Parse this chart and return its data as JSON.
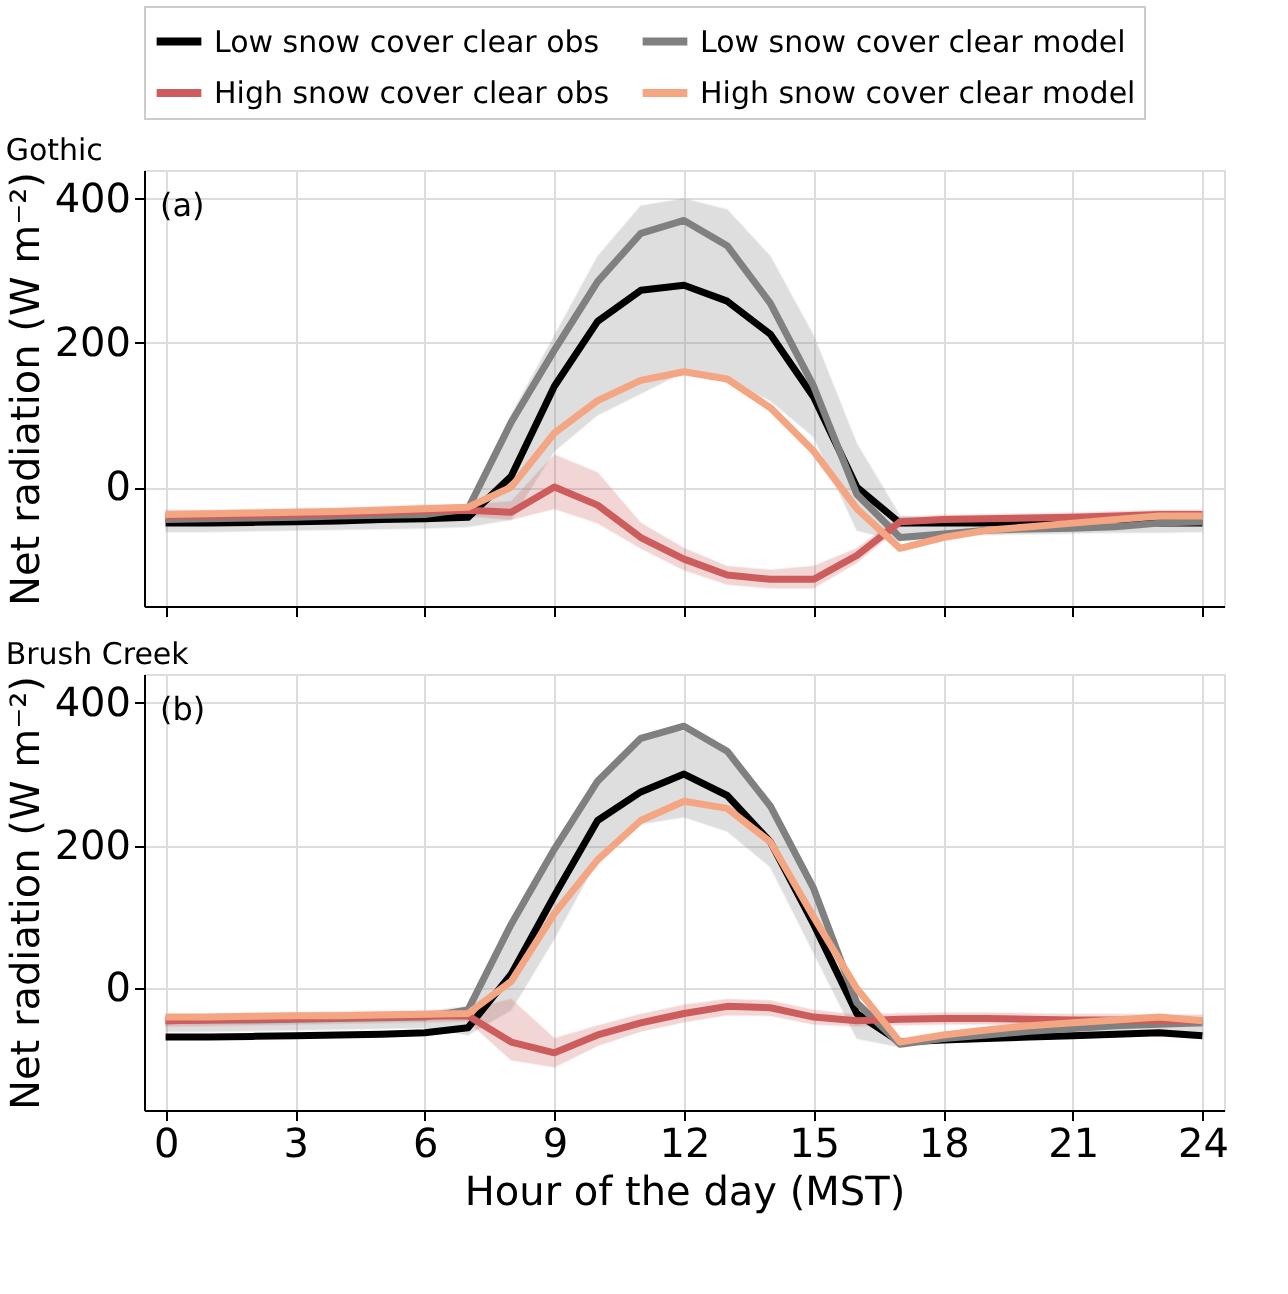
{
  "chart_data": [
    {
      "type": "line",
      "title": "Gothic",
      "ylabel": "Net radiation (W m⁻²)",
      "annotations": [
        "(a)"
      ],
      "xlim": [
        -0.5,
        24.5
      ],
      "xticks": [
        0,
        3,
        6,
        9,
        12,
        15,
        18,
        21,
        24
      ],
      "ylim": [
        -165,
        440
      ],
      "yticks": [
        0,
        200,
        400
      ],
      "grid": true,
      "legend": "top",
      "tick_labels": "y",
      "line_style": "solid",
      "marker": "none",
      "x": [
        0,
        1,
        2,
        3,
        4,
        5,
        6,
        7,
        8,
        9,
        10,
        11,
        12,
        13,
        14,
        15,
        16,
        17,
        18,
        19,
        20,
        21,
        22,
        23,
        24
      ],
      "series": [
        {
          "name": "Low snow cover clear obs",
          "color": "#000000",
          "values": [
            -50,
            -50,
            -49,
            -48,
            -47,
            -45,
            -44,
            -42,
            15,
            140,
            230,
            273,
            280,
            258,
            212,
            125,
            0,
            -50,
            -50,
            -50,
            -50,
            -47,
            -45,
            -50,
            -50
          ]
        },
        {
          "name": "Low snow cover clear model",
          "color": "#808080",
          "values": [
            -45,
            -44,
            -43,
            -42,
            -40,
            -39,
            -38,
            -30,
            90,
            190,
            285,
            352,
            370,
            335,
            255,
            140,
            -10,
            -70,
            -65,
            -60,
            -58,
            -57,
            -55,
            -50,
            -48
          ],
          "lower": [
            -62,
            -62,
            -61,
            -60,
            -59,
            -58,
            -57,
            -55,
            -45,
            50,
            100,
            130,
            160,
            150,
            120,
            70,
            -60,
            -75,
            -68,
            -66,
            -65,
            -64,
            -63,
            -63,
            -62
          ],
          "upper": [
            -38,
            -38,
            -37,
            -36,
            -35,
            -34,
            -33,
            -25,
            100,
            210,
            320,
            390,
            400,
            385,
            320,
            210,
            60,
            -40,
            -45,
            -44,
            -43,
            -42,
            -40,
            -38,
            -38
          ]
        },
        {
          "name": "High snow cover clear obs",
          "color": "#cd5c5c",
          "values": [
            -40,
            -40,
            -39,
            -38,
            -37,
            -35,
            -33,
            -32,
            -35,
            0,
            -25,
            -70,
            -100,
            -122,
            -128,
            -128,
            -95,
            -48,
            -45,
            -44,
            -43,
            -42,
            -40,
            -38,
            -38
          ],
          "lower": [
            -48,
            -48,
            -47,
            -46,
            -45,
            -43,
            -41,
            -40,
            -45,
            -30,
            -50,
            -85,
            -115,
            -135,
            -140,
            -140,
            -105,
            -55,
            -51,
            -50,
            -49,
            -48,
            -46,
            -44,
            -44
          ],
          "upper": [
            -32,
            -32,
            -31,
            -30,
            -29,
            -27,
            -25,
            -24,
            -20,
            45,
            20,
            -50,
            -85,
            -110,
            -115,
            -110,
            -85,
            -42,
            -39,
            -38,
            -37,
            -36,
            -34,
            -32,
            -32
          ]
        },
        {
          "name": "High snow cover clear model",
          "color": "#f4a582",
          "values": [
            -38,
            -37,
            -36,
            -35,
            -34,
            -32,
            -30,
            -28,
            0,
            75,
            120,
            148,
            160,
            150,
            110,
            50,
            -30,
            -85,
            -70,
            -60,
            -55,
            -50,
            -45,
            -40,
            -40
          ]
        }
      ]
    },
    {
      "type": "line",
      "title": "Brush Creek",
      "xlabel": "Hour of the day (MST)",
      "ylabel": "Net radiation (W m⁻²)",
      "annotations": [
        "(b)"
      ],
      "xlim": [
        -0.5,
        24.5
      ],
      "xticks": [
        0,
        3,
        6,
        9,
        12,
        15,
        18,
        21,
        24
      ],
      "ylim": [
        -170,
        440
      ],
      "yticks": [
        0,
        200,
        400
      ],
      "grid": true,
      "line_style": "solid",
      "marker": "none",
      "x": [
        0,
        1,
        2,
        3,
        4,
        5,
        6,
        7,
        8,
        9,
        10,
        11,
        12,
        13,
        14,
        15,
        16,
        17,
        18,
        19,
        20,
        21,
        22,
        23,
        24
      ],
      "series": [
        {
          "name": "Low snow cover clear obs",
          "color": "#000000",
          "values": [
            -68,
            -68,
            -67,
            -66,
            -65,
            -64,
            -62,
            -55,
            20,
            130,
            235,
            275,
            300,
            270,
            205,
            90,
            -35,
            -75,
            -72,
            -70,
            -68,
            -66,
            -64,
            -62,
            -66
          ]
        },
        {
          "name": "Low snow cover clear model",
          "color": "#808080",
          "values": [
            -45,
            -44,
            -44,
            -43,
            -42,
            -41,
            -40,
            -30,
            90,
            195,
            290,
            350,
            367,
            332,
            255,
            140,
            -20,
            -78,
            -70,
            -65,
            -60,
            -56,
            -52,
            -50,
            -48
          ],
          "lower": [
            -60,
            -60,
            -59,
            -58,
            -57,
            -56,
            -55,
            -65,
            -30,
            70,
            180,
            230,
            240,
            220,
            170,
            50,
            -70,
            -82,
            -76,
            -72,
            -70,
            -68,
            -66,
            -64,
            -64
          ],
          "upper": [
            -38,
            -38,
            -37,
            -36,
            -35,
            -34,
            -33,
            -25,
            95,
            200,
            295,
            355,
            360,
            335,
            255,
            145,
            -15,
            -70,
            -62,
            -58,
            -54,
            -50,
            -46,
            -44,
            -42
          ]
        },
        {
          "name": "High snow cover clear obs",
          "color": "#cd5c5c",
          "values": [
            -45,
            -44,
            -43,
            -42,
            -41,
            -40,
            -39,
            -38,
            -75,
            -90,
            -65,
            -48,
            -35,
            -25,
            -27,
            -40,
            -45,
            -43,
            -42,
            -42,
            -43,
            -44,
            -44,
            -45,
            -45
          ],
          "lower": [
            -53,
            -52,
            -51,
            -50,
            -49,
            -48,
            -47,
            -46,
            -100,
            -110,
            -80,
            -60,
            -47,
            -37,
            -38,
            -50,
            -53,
            -51,
            -50,
            -50,
            -51,
            -52,
            -52,
            -53,
            -53
          ],
          "upper": [
            -37,
            -36,
            -35,
            -34,
            -33,
            -32,
            -31,
            -30,
            -15,
            -70,
            -52,
            -36,
            -23,
            -15,
            -17,
            -30,
            -37,
            -35,
            -34,
            -34,
            -35,
            -36,
            -36,
            -37,
            -37
          ]
        },
        {
          "name": "High snow cover clear model",
          "color": "#f4a582",
          "values": [
            -40,
            -40,
            -39,
            -38,
            -38,
            -37,
            -36,
            -35,
            10,
            105,
            180,
            235,
            262,
            252,
            205,
            100,
            0,
            -75,
            -65,
            -58,
            -52,
            -48,
            -44,
            -40,
            -45
          ]
        }
      ]
    }
  ]
}
